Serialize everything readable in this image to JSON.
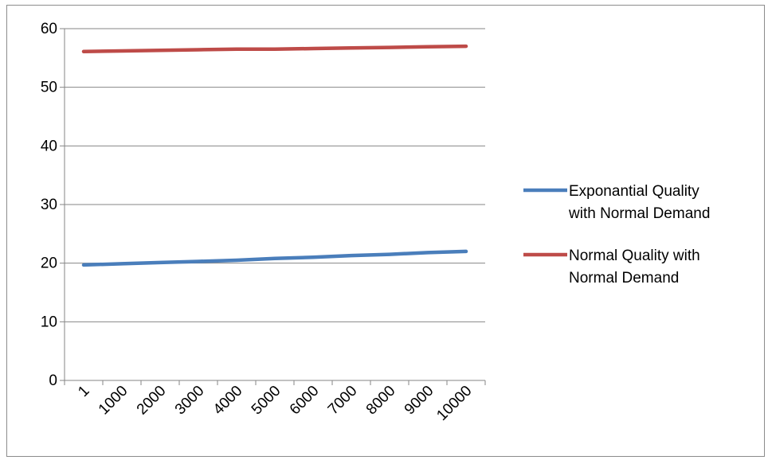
{
  "chart_data": {
    "type": "line",
    "categories": [
      "1",
      "1000",
      "2000",
      "3000",
      "4000",
      "5000",
      "6000",
      "7000",
      "8000",
      "9000",
      "10000"
    ],
    "ylim": [
      0,
      60
    ],
    "yticks": [
      0,
      10,
      20,
      30,
      40,
      50,
      60
    ],
    "grid": true,
    "legend_position": "right",
    "series": [
      {
        "name": "Exponantial Quality with Normal Demand",
        "legend_lines": [
          "Exponantial Quality",
          "with Normal Demand"
        ],
        "color": "#4a7ebb",
        "values": [
          19.7,
          19.9,
          20.1,
          20.3,
          20.5,
          20.8,
          21.0,
          21.3,
          21.5,
          21.8,
          22.0
        ]
      },
      {
        "name": "Normal Quality with Normal Demand",
        "legend_lines": [
          "Normal Quality with",
          "Normal Demand"
        ],
        "color": "#be4b48",
        "values": [
          56.1,
          56.2,
          56.3,
          56.4,
          56.5,
          56.5,
          56.6,
          56.7,
          56.8,
          56.9,
          57.0
        ]
      }
    ]
  }
}
